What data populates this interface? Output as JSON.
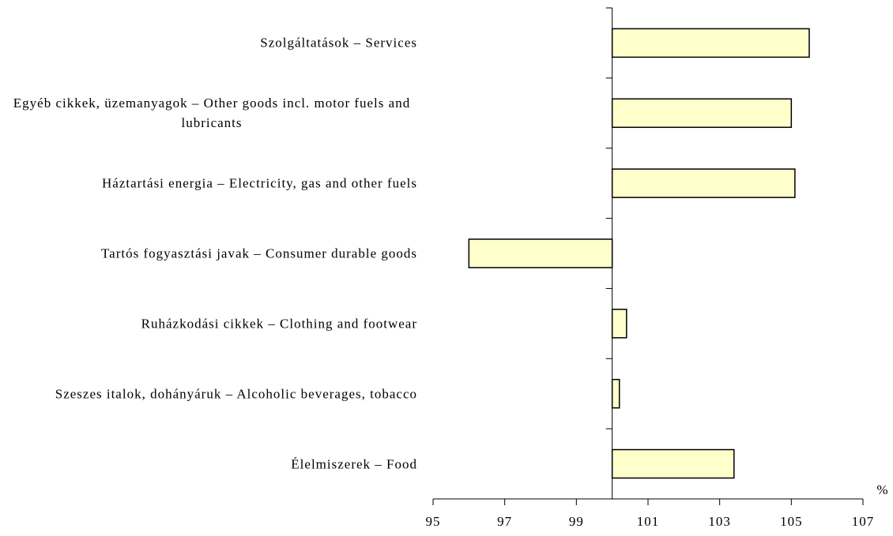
{
  "chart_data": {
    "type": "barh",
    "categories": [
      "Szolgáltatások – Services",
      "Egyéb cikkek, üzemanyagok – Other goods incl. motor fuels and lubricants",
      "Háztartási energia – Electricity, gas and other fuels",
      "Tartós fogyasztási javak – Consumer durable goods",
      "Ruházkodási cikkek – Clothing and footwear",
      "Szeszes italok, dohányáruk – Alcoholic beverages, tobacco",
      "Élelmiszerek – Food"
    ],
    "values": [
      105.5,
      105.0,
      105.1,
      96.0,
      100.4,
      100.2,
      103.4
    ],
    "color": "#ffffcc",
    "xbase": 100,
    "xlim": [
      95,
      107
    ],
    "xticks": [
      95,
      97,
      99,
      101,
      103,
      105,
      107
    ],
    "x_label": "%"
  }
}
